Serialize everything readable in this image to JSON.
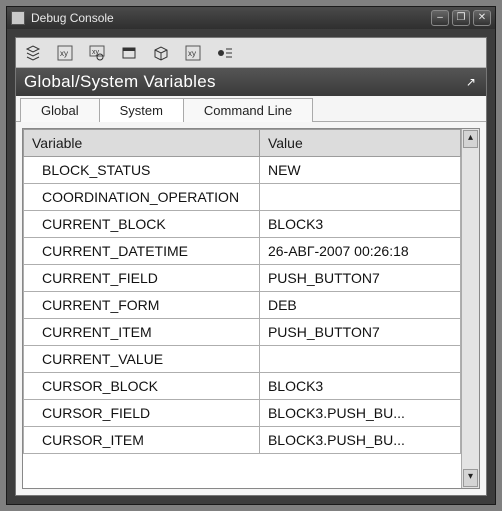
{
  "window": {
    "title": "Debug Console"
  },
  "panel": {
    "title": "Global/System Variables"
  },
  "tabs": [
    {
      "label": "Global",
      "active": false
    },
    {
      "label": "System",
      "active": true
    },
    {
      "label": "Command Line",
      "active": false
    }
  ],
  "columns": {
    "variable": "Variable",
    "value": "Value"
  },
  "col_widths": {
    "variable": "54%",
    "value": "46%"
  },
  "rows": [
    {
      "variable": "BLOCK_STATUS",
      "value": "NEW"
    },
    {
      "variable": "COORDINATION_OPERATION",
      "value": ""
    },
    {
      "variable": "CURRENT_BLOCK",
      "value": "BLOCK3"
    },
    {
      "variable": "CURRENT_DATETIME",
      "value": "26-АВГ-2007 00:26:18"
    },
    {
      "variable": "CURRENT_FIELD",
      "value": "PUSH_BUTTON7"
    },
    {
      "variable": "CURRENT_FORM",
      "value": "DEB"
    },
    {
      "variable": "CURRENT_ITEM",
      "value": "PUSH_BUTTON7"
    },
    {
      "variable": "CURRENT_VALUE",
      "value": ""
    },
    {
      "variable": "CURSOR_BLOCK",
      "value": "BLOCK3"
    },
    {
      "variable": "CURSOR_FIELD",
      "value": "BLOCK3.PUSH_BU..."
    },
    {
      "variable": "CURSOR_ITEM",
      "value": "BLOCK3.PUSH_BU..."
    }
  ],
  "colors": {
    "window_bg": "#3d3d3d",
    "client_bg": "#e6e6e6",
    "header_grad_top": "#555555",
    "header_grad_bot": "#3a3a3a",
    "th_bg": "#dcdcdc",
    "cell_border": "#aeaeae"
  }
}
